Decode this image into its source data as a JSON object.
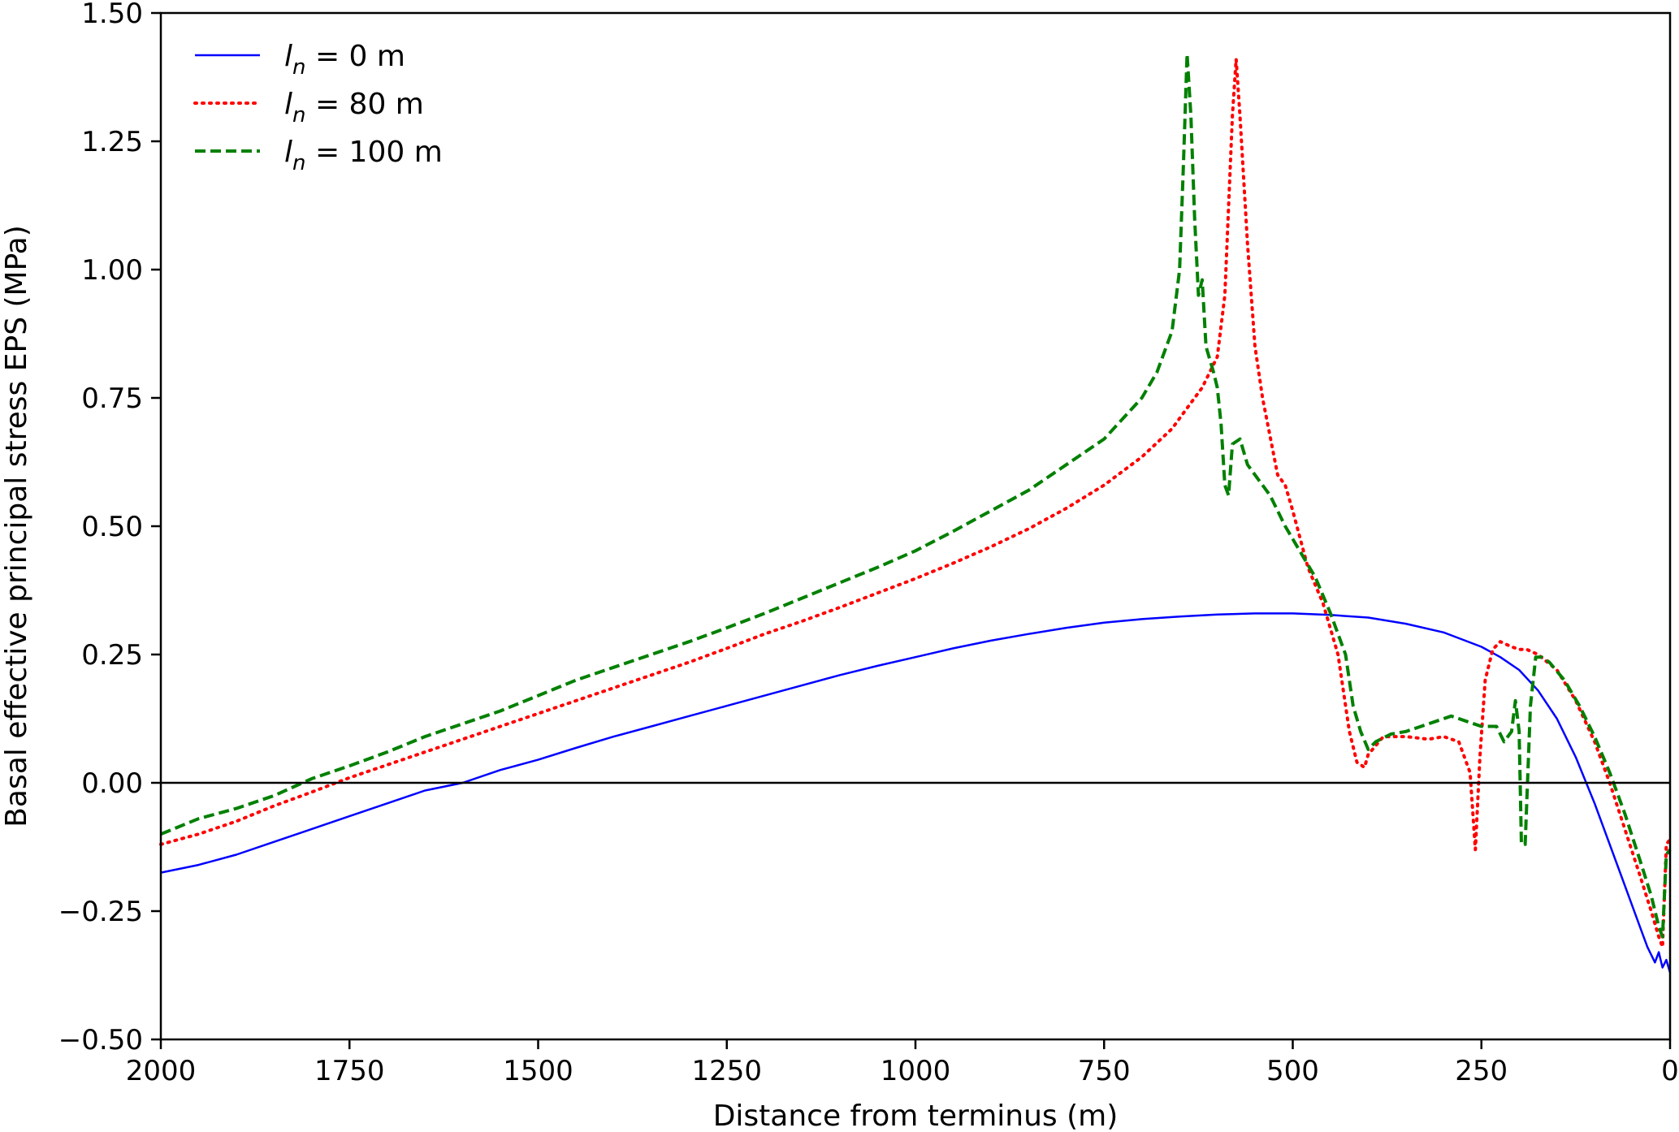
{
  "chart_data": {
    "type": "line",
    "title": "",
    "xlabel": "Distance from terminus (m)",
    "ylabel": "Basal effective principal stress EPS (MPa)",
    "xlim": [
      2000,
      0
    ],
    "ylim": [
      -0.5,
      1.5
    ],
    "x_reversed": true,
    "x_ticks": [
      2000,
      1750,
      1500,
      1250,
      1000,
      750,
      500,
      250,
      0
    ],
    "y_ticks": [
      -0.5,
      -0.25,
      0.0,
      0.25,
      0.5,
      0.75,
      1.0,
      1.25,
      1.5
    ],
    "x_tick_labels": [
      "2000",
      "1750",
      "1500",
      "1250",
      "1000",
      "750",
      "500",
      "250",
      "0"
    ],
    "y_tick_labels": [
      "−0.50",
      "−0.25",
      "0.00",
      "0.25",
      "0.50",
      "0.75",
      "1.00",
      "1.25",
      "1.50"
    ],
    "grid": false,
    "zero_line": 0.0,
    "legend_position": "top-left",
    "series": [
      {
        "name_main": "l",
        "name_sub": "n",
        "name_rest": " = 0 m",
        "color": "#0000ff",
        "style": "solid",
        "points": [
          [
            2000,
            -0.175
          ],
          [
            1950,
            -0.16
          ],
          [
            1900,
            -0.14
          ],
          [
            1850,
            -0.115
          ],
          [
            1800,
            -0.09
          ],
          [
            1750,
            -0.065
          ],
          [
            1700,
            -0.04
          ],
          [
            1650,
            -0.015
          ],
          [
            1600,
            0.0
          ],
          [
            1550,
            0.025
          ],
          [
            1500,
            0.045
          ],
          [
            1450,
            0.068
          ],
          [
            1400,
            0.09
          ],
          [
            1350,
            0.11
          ],
          [
            1300,
            0.13
          ],
          [
            1250,
            0.15
          ],
          [
            1200,
            0.17
          ],
          [
            1150,
            0.19
          ],
          [
            1100,
            0.21
          ],
          [
            1050,
            0.228
          ],
          [
            1000,
            0.245
          ],
          [
            950,
            0.262
          ],
          [
            900,
            0.277
          ],
          [
            850,
            0.29
          ],
          [
            800,
            0.302
          ],
          [
            750,
            0.312
          ],
          [
            700,
            0.319
          ],
          [
            650,
            0.324
          ],
          [
            600,
            0.328
          ],
          [
            550,
            0.33
          ],
          [
            500,
            0.33
          ],
          [
            450,
            0.327
          ],
          [
            400,
            0.322
          ],
          [
            350,
            0.31
          ],
          [
            300,
            0.293
          ],
          [
            250,
            0.265
          ],
          [
            225,
            0.245
          ],
          [
            200,
            0.22
          ],
          [
            175,
            0.18
          ],
          [
            150,
            0.125
          ],
          [
            125,
            0.05
          ],
          [
            100,
            -0.04
          ],
          [
            80,
            -0.12
          ],
          [
            60,
            -0.2
          ],
          [
            40,
            -0.28
          ],
          [
            30,
            -0.32
          ],
          [
            20,
            -0.35
          ],
          [
            15,
            -0.33
          ],
          [
            10,
            -0.36
          ],
          [
            5,
            -0.345
          ],
          [
            0,
            -0.37
          ]
        ]
      },
      {
        "name_main": "l",
        "name_sub": "n",
        "name_rest": " = 80 m",
        "color": "#ff0000",
        "style": "dotted",
        "points": [
          [
            2000,
            -0.12
          ],
          [
            1950,
            -0.1
          ],
          [
            1900,
            -0.075
          ],
          [
            1850,
            -0.045
          ],
          [
            1800,
            -0.018
          ],
          [
            1750,
            0.01
          ],
          [
            1700,
            0.035
          ],
          [
            1650,
            0.06
          ],
          [
            1600,
            0.085
          ],
          [
            1550,
            0.11
          ],
          [
            1500,
            0.135
          ],
          [
            1450,
            0.16
          ],
          [
            1400,
            0.185
          ],
          [
            1350,
            0.21
          ],
          [
            1300,
            0.235
          ],
          [
            1250,
            0.262
          ],
          [
            1200,
            0.29
          ],
          [
            1150,
            0.315
          ],
          [
            1100,
            0.342
          ],
          [
            1050,
            0.37
          ],
          [
            1000,
            0.398
          ],
          [
            950,
            0.428
          ],
          [
            900,
            0.46
          ],
          [
            850,
            0.495
          ],
          [
            800,
            0.535
          ],
          [
            750,
            0.58
          ],
          [
            700,
            0.635
          ],
          [
            660,
            0.69
          ],
          [
            640,
            0.73
          ],
          [
            620,
            0.77
          ],
          [
            600,
            0.83
          ],
          [
            590,
            0.95
          ],
          [
            580,
            1.3
          ],
          [
            575,
            1.41
          ],
          [
            570,
            1.3
          ],
          [
            560,
            1.05
          ],
          [
            550,
            0.85
          ],
          [
            540,
            0.75
          ],
          [
            520,
            0.6
          ],
          [
            510,
            0.58
          ],
          [
            500,
            0.53
          ],
          [
            480,
            0.42
          ],
          [
            460,
            0.35
          ],
          [
            440,
            0.25
          ],
          [
            425,
            0.1
          ],
          [
            415,
            0.04
          ],
          [
            405,
            0.03
          ],
          [
            400,
            0.055
          ],
          [
            380,
            0.09
          ],
          [
            350,
            0.09
          ],
          [
            320,
            0.085
          ],
          [
            300,
            0.09
          ],
          [
            280,
            0.08
          ],
          [
            265,
            0.02
          ],
          [
            258,
            -0.13
          ],
          [
            252,
            0.05
          ],
          [
            245,
            0.2
          ],
          [
            235,
            0.26
          ],
          [
            225,
            0.275
          ],
          [
            210,
            0.265
          ],
          [
            200,
            0.26
          ],
          [
            190,
            0.26
          ],
          [
            175,
            0.25
          ],
          [
            150,
            0.22
          ],
          [
            125,
            0.16
          ],
          [
            100,
            0.08
          ],
          [
            80,
            0.0
          ],
          [
            60,
            -0.09
          ],
          [
            40,
            -0.18
          ],
          [
            25,
            -0.25
          ],
          [
            15,
            -0.3
          ],
          [
            10,
            -0.32
          ],
          [
            5,
            -0.12
          ],
          [
            0,
            -0.11
          ]
        ]
      },
      {
        "name_main": "l",
        "name_sub": "n",
        "name_rest": " = 100 m",
        "color": "#008000",
        "style": "dashed",
        "points": [
          [
            2000,
            -0.1
          ],
          [
            1950,
            -0.07
          ],
          [
            1900,
            -0.05
          ],
          [
            1850,
            -0.025
          ],
          [
            1800,
            0.008
          ],
          [
            1750,
            0.033
          ],
          [
            1700,
            0.06
          ],
          [
            1650,
            0.09
          ],
          [
            1600,
            0.115
          ],
          [
            1550,
            0.14
          ],
          [
            1500,
            0.17
          ],
          [
            1450,
            0.2
          ],
          [
            1400,
            0.225
          ],
          [
            1350,
            0.25
          ],
          [
            1300,
            0.275
          ],
          [
            1250,
            0.302
          ],
          [
            1200,
            0.33
          ],
          [
            1150,
            0.36
          ],
          [
            1100,
            0.39
          ],
          [
            1050,
            0.42
          ],
          [
            1000,
            0.452
          ],
          [
            950,
            0.49
          ],
          [
            900,
            0.53
          ],
          [
            850,
            0.57
          ],
          [
            800,
            0.62
          ],
          [
            750,
            0.67
          ],
          [
            700,
            0.75
          ],
          [
            680,
            0.8
          ],
          [
            660,
            0.88
          ],
          [
            650,
            1.0
          ],
          [
            645,
            1.2
          ],
          [
            640,
            1.42
          ],
          [
            635,
            1.3
          ],
          [
            630,
            1.1
          ],
          [
            625,
            0.95
          ],
          [
            620,
            0.98
          ],
          [
            615,
            0.85
          ],
          [
            605,
            0.8
          ],
          [
            600,
            0.77
          ],
          [
            595,
            0.7
          ],
          [
            590,
            0.58
          ],
          [
            585,
            0.56
          ],
          [
            580,
            0.66
          ],
          [
            570,
            0.67
          ],
          [
            560,
            0.62
          ],
          [
            550,
            0.6
          ],
          [
            530,
            0.56
          ],
          [
            510,
            0.5
          ],
          [
            490,
            0.45
          ],
          [
            470,
            0.4
          ],
          [
            450,
            0.33
          ],
          [
            430,
            0.25
          ],
          [
            420,
            0.15
          ],
          [
            410,
            0.1
          ],
          [
            400,
            0.065
          ],
          [
            390,
            0.08
          ],
          [
            370,
            0.095
          ],
          [
            350,
            0.1
          ],
          [
            330,
            0.11
          ],
          [
            310,
            0.12
          ],
          [
            290,
            0.13
          ],
          [
            270,
            0.12
          ],
          [
            250,
            0.11
          ],
          [
            230,
            0.11
          ],
          [
            220,
            0.08
          ],
          [
            210,
            0.1
          ],
          [
            205,
            0.16
          ],
          [
            200,
            0.1
          ],
          [
            197,
            -0.12
          ],
          [
            192,
            -0.12
          ],
          [
            185,
            0.15
          ],
          [
            178,
            0.245
          ],
          [
            170,
            0.245
          ],
          [
            160,
            0.235
          ],
          [
            140,
            0.2
          ],
          [
            120,
            0.15
          ],
          [
            100,
            0.09
          ],
          [
            80,
            0.02
          ],
          [
            60,
            -0.06
          ],
          [
            40,
            -0.15
          ],
          [
            25,
            -0.22
          ],
          [
            15,
            -0.28
          ],
          [
            10,
            -0.3
          ],
          [
            5,
            -0.14
          ],
          [
            0,
            -0.13
          ]
        ]
      }
    ]
  }
}
